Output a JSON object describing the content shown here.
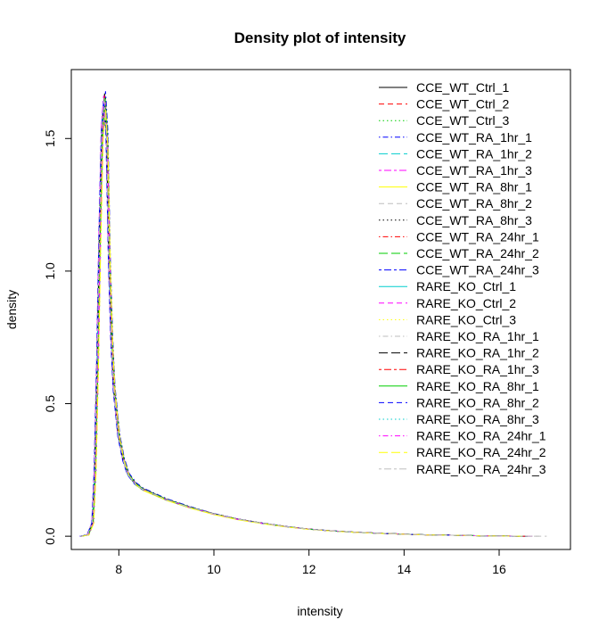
{
  "chart_data": {
    "type": "line",
    "title": "Density plot of intensity",
    "xlabel": "intensity",
    "ylabel": "density",
    "xlim": [
      7.0,
      17.5
    ],
    "ylim": [
      -0.05,
      1.76
    ],
    "x_ticks": [
      8,
      10,
      12,
      14,
      16
    ],
    "y_ticks": [
      0.0,
      0.5,
      1.0,
      1.5
    ],
    "x_tick_labels": [
      "8",
      "10",
      "12",
      "14",
      "16"
    ],
    "y_tick_labels": [
      "0.0",
      "0.5",
      "1.0",
      "1.5"
    ],
    "grid": false,
    "legend_position": "top-right",
    "series": [
      {
        "name": "CCE_WT_Ctrl_1",
        "color": "#000000",
        "dash": "solid",
        "shift": 0.0,
        "scale": 1.0,
        "end": 16.6
      },
      {
        "name": "CCE_WT_Ctrl_2",
        "color": "#FF0000",
        "dash": "dashed",
        "shift": 0.01,
        "scale": 0.99,
        "end": 16.4
      },
      {
        "name": "CCE_WT_Ctrl_3",
        "color": "#00CD00",
        "dash": "dotted",
        "shift": -0.01,
        "scale": 0.995,
        "end": 16.5
      },
      {
        "name": "CCE_WT_RA_1hr_1",
        "color": "#0000FF",
        "dash": "dotdash",
        "shift": 0.02,
        "scale": 1.005,
        "end": 16.3
      },
      {
        "name": "CCE_WT_RA_1hr_2",
        "color": "#00CDCD",
        "dash": "longdash",
        "shift": 0.0,
        "scale": 0.985,
        "end": 16.7
      },
      {
        "name": "CCE_WT_RA_1hr_3",
        "color": "#FF00FF",
        "dash": "twodash",
        "shift": -0.02,
        "scale": 0.995,
        "end": 16.5
      },
      {
        "name": "CCE_WT_RA_8hr_1",
        "color": "#FFFF00",
        "dash": "solid",
        "shift": 0.01,
        "scale": 0.96,
        "end": 16.4
      },
      {
        "name": "CCE_WT_RA_8hr_2",
        "color": "#BEBEBE",
        "dash": "dashed",
        "shift": 0.0,
        "scale": 0.975,
        "end": 17.1
      },
      {
        "name": "CCE_WT_RA_8hr_3",
        "color": "#000000",
        "dash": "dotted",
        "shift": 0.02,
        "scale": 0.99,
        "end": 16.6
      },
      {
        "name": "CCE_WT_RA_24hr_1",
        "color": "#FF0000",
        "dash": "dotdash",
        "shift": -0.01,
        "scale": 0.99,
        "end": 16.4
      },
      {
        "name": "CCE_WT_RA_24hr_2",
        "color": "#00CD00",
        "dash": "longdash",
        "shift": 0.01,
        "scale": 0.98,
        "end": 16.5
      },
      {
        "name": "CCE_WT_RA_24hr_3",
        "color": "#0000FF",
        "dash": "twodash",
        "shift": 0.0,
        "scale": 0.995,
        "end": 16.6
      },
      {
        "name": "RARE_KO_Ctrl_1",
        "color": "#00CDCD",
        "dash": "solid",
        "shift": -0.01,
        "scale": 0.985,
        "end": 16.3
      },
      {
        "name": "RARE_KO_Ctrl_2",
        "color": "#FF00FF",
        "dash": "dashed",
        "shift": 0.01,
        "scale": 0.985,
        "end": 16.7
      },
      {
        "name": "RARE_KO_Ctrl_3",
        "color": "#FFFF00",
        "dash": "dotted",
        "shift": 0.0,
        "scale": 0.97,
        "end": 16.5
      },
      {
        "name": "RARE_KO_RA_1hr_1",
        "color": "#BEBEBE",
        "dash": "dotdash",
        "shift": 0.02,
        "scale": 0.98,
        "end": 16.9
      },
      {
        "name": "RARE_KO_RA_1hr_2",
        "color": "#000000",
        "dash": "longdash",
        "shift": -0.01,
        "scale": 0.99,
        "end": 16.4
      },
      {
        "name": "RARE_KO_RA_1hr_3",
        "color": "#FF0000",
        "dash": "twodash",
        "shift": 0.0,
        "scale": 0.995,
        "end": 16.6
      },
      {
        "name": "RARE_KO_RA_8hr_1",
        "color": "#00CD00",
        "dash": "solid",
        "shift": 0.01,
        "scale": 0.99,
        "end": 16.5
      },
      {
        "name": "RARE_KO_RA_8hr_2",
        "color": "#0000FF",
        "dash": "dashed",
        "shift": -0.02,
        "scale": 0.985,
        "end": 16.3
      },
      {
        "name": "RARE_KO_RA_8hr_3",
        "color": "#00CDCD",
        "dash": "dotted",
        "shift": 0.0,
        "scale": 0.975,
        "end": 16.6
      },
      {
        "name": "RARE_KO_RA_24hr_1",
        "color": "#FF00FF",
        "dash": "dotdash",
        "shift": 0.01,
        "scale": 0.98,
        "end": 16.4
      },
      {
        "name": "RARE_KO_RA_24hr_2",
        "color": "#FFFF00",
        "dash": "longdash",
        "shift": 0.02,
        "scale": 0.965,
        "end": 16.5
      },
      {
        "name": "RARE_KO_RA_24hr_3",
        "color": "#BEBEBE",
        "dash": "twodash",
        "shift": -0.01,
        "scale": 0.99,
        "end": 16.8
      }
    ],
    "base_curve": {
      "x": [
        7.2,
        7.35,
        7.45,
        7.5,
        7.55,
        7.6,
        7.65,
        7.7,
        7.75,
        7.8,
        7.85,
        7.9,
        8.0,
        8.1,
        8.2,
        8.35,
        8.5,
        8.75,
        9.0,
        9.5,
        10.0,
        10.5,
        11.0,
        11.5,
        12.0,
        12.5,
        13.0,
        13.5,
        14.0,
        14.5,
        15.0,
        15.5,
        16.0,
        16.5,
        17.0
      ],
      "y": [
        0.0,
        0.005,
        0.05,
        0.25,
        0.65,
        1.15,
        1.55,
        1.67,
        1.52,
        1.05,
        0.75,
        0.56,
        0.38,
        0.29,
        0.235,
        0.2,
        0.18,
        0.16,
        0.14,
        0.11,
        0.085,
        0.065,
        0.05,
        0.037,
        0.027,
        0.02,
        0.015,
        0.011,
        0.008,
        0.005,
        0.004,
        0.002,
        0.001,
        0.0,
        0.0
      ]
    }
  }
}
